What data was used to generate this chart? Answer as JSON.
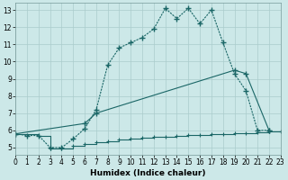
{
  "xlabel": "Humidex (Indice chaleur)",
  "bg_color": "#cce8e8",
  "grid_color": "#aacccc",
  "line_color": "#1a6666",
  "xlim": [
    0,
    23
  ],
  "ylim": [
    4.6,
    13.4
  ],
  "xticks": [
    0,
    1,
    2,
    3,
    4,
    5,
    6,
    7,
    8,
    9,
    10,
    11,
    12,
    13,
    14,
    15,
    16,
    17,
    18,
    19,
    20,
    21,
    22,
    23
  ],
  "yticks": [
    5,
    6,
    7,
    8,
    9,
    10,
    11,
    12,
    13
  ],
  "line1_x": [
    0,
    1,
    2,
    3,
    4,
    5,
    6,
    7,
    8,
    9,
    10,
    11,
    12,
    13,
    14,
    15,
    16,
    17,
    18,
    19,
    20,
    21,
    22
  ],
  "line1_y": [
    5.8,
    5.7,
    5.7,
    5.0,
    5.0,
    5.5,
    6.1,
    7.2,
    9.8,
    10.8,
    11.1,
    11.4,
    11.9,
    13.1,
    12.5,
    13.1,
    12.2,
    13.0,
    11.1,
    9.3,
    8.3,
    6.0,
    6.0
  ],
  "line2_x": [
    0,
    6,
    7,
    19,
    20,
    22
  ],
  "line2_y": [
    5.8,
    6.4,
    7.0,
    9.5,
    9.3,
    6.0
  ],
  "line3_x": [
    0,
    2,
    3,
    4,
    5,
    6,
    7,
    8,
    9,
    10,
    11,
    12,
    13,
    14,
    15,
    16,
    17,
    18,
    19,
    20,
    21,
    22,
    23
  ],
  "line3_y": [
    5.8,
    5.7,
    4.95,
    4.95,
    5.1,
    5.2,
    5.3,
    5.38,
    5.45,
    5.5,
    5.55,
    5.6,
    5.65,
    5.68,
    5.71,
    5.74,
    5.76,
    5.78,
    5.82,
    5.85,
    5.88,
    5.92,
    5.95
  ]
}
